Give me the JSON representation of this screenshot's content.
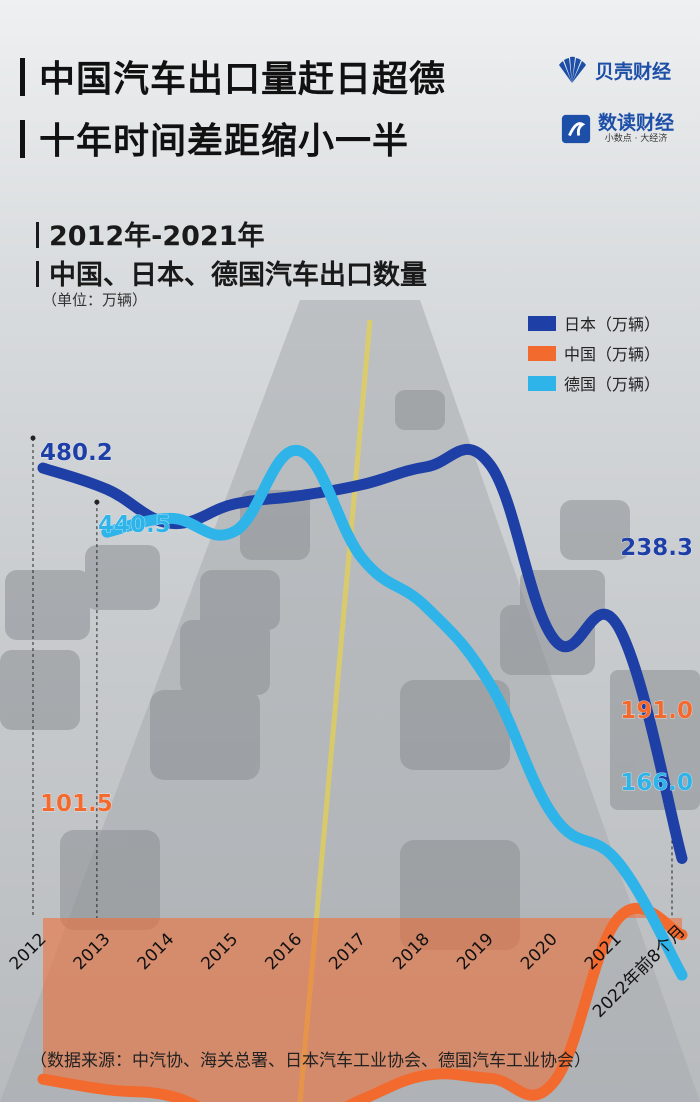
{
  "header": {
    "title_line1": "中国汽车出口量赶日超德",
    "title_line2": "十年时间差距缩小一半",
    "logo1_text": "贝壳财经",
    "logo2_text": "数读财经",
    "logo2_sub": "小数点 · 大经济"
  },
  "subtitle": {
    "line1": "2012年-2021年",
    "line2": "中国、日本、德国汽车出口数量",
    "unit": "（单位：万辆）"
  },
  "legend": [
    {
      "label": "日本（万辆）",
      "color": "#1d3fa6"
    },
    {
      "label": "中国（万辆）",
      "color": "#f26a2e"
    },
    {
      "label": "德国（万辆）",
      "color": "#2fb4e9"
    }
  ],
  "source": "（数据来源：中汽协、海关总署、日本汽车工业协会、德国汽车工业协会）",
  "chart_data": {
    "type": "line",
    "categories": [
      "2012",
      "2013",
      "2014",
      "2015",
      "2016",
      "2017",
      "2018",
      "2019",
      "2020",
      "2021",
      "2022年前8个月"
    ],
    "ylim": [
      0,
      620
    ],
    "series": [
      {
        "name": "日本（万辆）",
        "color": "#1d3fa6",
        "values": [
          480.2,
          467,
          446,
          458,
          463,
          470,
          481,
          482,
          374,
          382,
          238.3
        ],
        "labels": [
          {
            "index": 0,
            "text": "480.2"
          },
          {
            "index": 10,
            "text": "238.3"
          }
        ]
      },
      {
        "name": "中国（万辆）",
        "color": "#f26a2e",
        "values": [
          101.5,
          95,
          91,
          75,
          71,
          89,
          104,
          102,
          100,
          201,
          191.0
        ],
        "labels": [
          {
            "index": 0,
            "text": "101.5"
          },
          {
            "index": 10,
            "text": "191.0"
          }
        ]
      },
      {
        "name": "德国（万辆）",
        "color": "#2fb4e9",
        "values": [
          null,
          440.5,
          449,
          441,
          491,
          424,
          394,
          346,
          264,
          236,
          166.0
        ],
        "labels": [
          {
            "index": 1,
            "text": "440.5"
          },
          {
            "index": 10,
            "text": "166.0"
          }
        ]
      }
    ]
  }
}
